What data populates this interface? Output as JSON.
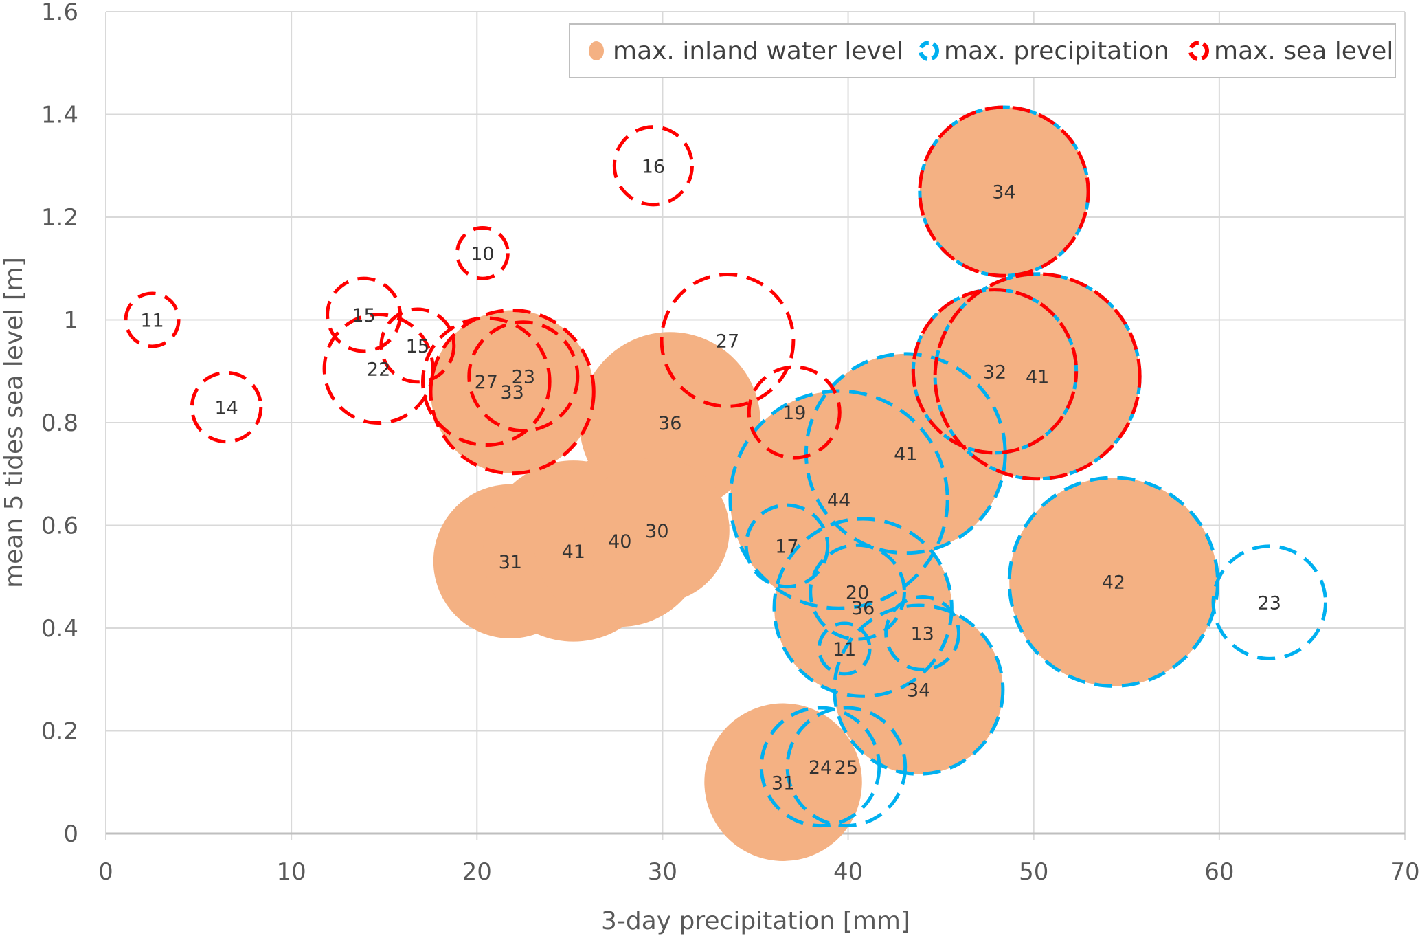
{
  "chart_data": {
    "type": "bubble",
    "xlabel": "3-day precipitation [mm]",
    "ylabel": "mean 5 tides sea level [m]",
    "xlim": [
      0,
      70
    ],
    "ylim": [
      0,
      1.6
    ],
    "xticks": [
      "0",
      "10",
      "20",
      "30",
      "40",
      "50",
      "60",
      "70"
    ],
    "yticks": [
      "0",
      "0.2",
      "0.4",
      "0.6",
      "0.8",
      "1",
      "1.2",
      "1.4",
      "1.6"
    ],
    "grid": true,
    "legend_placement": "top-right",
    "series_styles": {
      "inland": {
        "name": "max. inland water level",
        "color": "#F4B183",
        "style": "filled"
      },
      "precip": {
        "name": "max. precipitation",
        "color": "#00B0F0",
        "style": "dashed"
      },
      "sea": {
        "name": "max. sea level",
        "color": "#FF0000",
        "style": "dashed"
      }
    },
    "legend": [
      "max. inland water level",
      "max. precipitation",
      "max. sea level"
    ],
    "bubbles": [
      {
        "x": 2.5,
        "y": 1.0,
        "label": "11",
        "size": 3.7,
        "series": [
          "sea"
        ]
      },
      {
        "x": 6.5,
        "y": 0.83,
        "label": "14",
        "size": 6.3,
        "series": [
          "sea"
        ]
      },
      {
        "x": 13.9,
        "y": 1.01,
        "label": "15",
        "size": 7,
        "series": [
          "sea"
        ]
      },
      {
        "x": 14.7,
        "y": 0.905,
        "label": "22",
        "size": 15.6,
        "series": [
          "sea"
        ]
      },
      {
        "x": 16.8,
        "y": 0.95,
        "label": "15",
        "size": 7,
        "series": [
          "sea"
        ]
      },
      {
        "x": 20.3,
        "y": 1.13,
        "label": "10",
        "size": 3.4,
        "series": [
          "sea"
        ]
      },
      {
        "x": 29.5,
        "y": 1.3,
        "label": "16",
        "size": 8,
        "series": [
          "sea"
        ]
      },
      {
        "x": 20.5,
        "y": 0.88,
        "label": "27",
        "size": 21.3,
        "series": [
          "sea"
        ]
      },
      {
        "x": 22.5,
        "y": 0.89,
        "label": "23",
        "size": 15.6,
        "series": [
          "sea"
        ]
      },
      {
        "x": 21.9,
        "y": 0.86,
        "label": "33",
        "size": 35.2,
        "series": [
          "inland",
          "sea"
        ]
      },
      {
        "x": 33.5,
        "y": 0.96,
        "label": "27",
        "size": 23,
        "series": [
          "sea"
        ]
      },
      {
        "x": 37.1,
        "y": 0.82,
        "label": "19",
        "size": 10.9,
        "series": [
          "sea"
        ]
      },
      {
        "x": 48.4,
        "y": 1.25,
        "label": "34",
        "size": 37.6,
        "series": [
          "inland",
          "precip",
          "sea"
        ]
      },
      {
        "x": 47.9,
        "y": 0.9,
        "label": "32",
        "size": 35.2,
        "series": [
          "inland",
          "precip",
          "sea"
        ]
      },
      {
        "x": 50.2,
        "y": 0.89,
        "label": "41",
        "size": 55.5,
        "series": [
          "inland",
          "precip",
          "sea"
        ]
      },
      {
        "x": 30.4,
        "y": 0.8,
        "label": "36",
        "size": 43.4,
        "series": [
          "inland"
        ]
      },
      {
        "x": 21.8,
        "y": 0.53,
        "label": "31",
        "size": 31.4,
        "series": [
          "inland"
        ]
      },
      {
        "x": 25.2,
        "y": 0.55,
        "label": "41",
        "size": 43.4,
        "series": [
          "inland"
        ]
      },
      {
        "x": 27.7,
        "y": 0.57,
        "label": "40",
        "size": 39.2,
        "series": [
          "inland"
        ]
      },
      {
        "x": 29.7,
        "y": 0.59,
        "label": "30",
        "size": 27.8,
        "series": [
          "inland"
        ]
      },
      {
        "x": 36.5,
        "y": 0.1,
        "label": "31",
        "size": 32.9,
        "series": [
          "inland"
        ]
      },
      {
        "x": 39.5,
        "y": 0.65,
        "label": "44",
        "size": 62.5,
        "series": [
          "inland",
          "precip"
        ]
      },
      {
        "x": 43.1,
        "y": 0.74,
        "label": "41",
        "size": 52.5,
        "series": [
          "inland",
          "precip"
        ]
      },
      {
        "x": 54.3,
        "y": 0.49,
        "label": "42",
        "size": 57.5,
        "series": [
          "inland",
          "precip"
        ]
      },
      {
        "x": 40.8,
        "y": 0.44,
        "label": "36",
        "size": 41.7,
        "series": [
          "inland",
          "precip"
        ]
      },
      {
        "x": 43.8,
        "y": 0.28,
        "label": "34",
        "size": 37.6,
        "series": [
          "inland",
          "precip"
        ]
      },
      {
        "x": 62.7,
        "y": 0.45,
        "label": "23",
        "size": 16.7,
        "series": [
          "precip"
        ]
      },
      {
        "x": 36.7,
        "y": 0.56,
        "label": "17",
        "size": 8.8,
        "series": [
          "precip"
        ]
      },
      {
        "x": 40.5,
        "y": 0.47,
        "label": "20",
        "size": 11.7,
        "series": [
          "precip"
        ]
      },
      {
        "x": 39.8,
        "y": 0.36,
        "label": "11",
        "size": 3.4,
        "series": [
          "precip"
        ]
      },
      {
        "x": 44.0,
        "y": 0.39,
        "label": "13",
        "size": 7,
        "series": [
          "precip"
        ]
      },
      {
        "x": 38.5,
        "y": 0.13,
        "label": "24",
        "size": 18.4,
        "series": [
          "precip"
        ]
      },
      {
        "x": 39.9,
        "y": 0.13,
        "label": "25",
        "size": 18.4,
        "series": [
          "precip"
        ]
      }
    ]
  }
}
